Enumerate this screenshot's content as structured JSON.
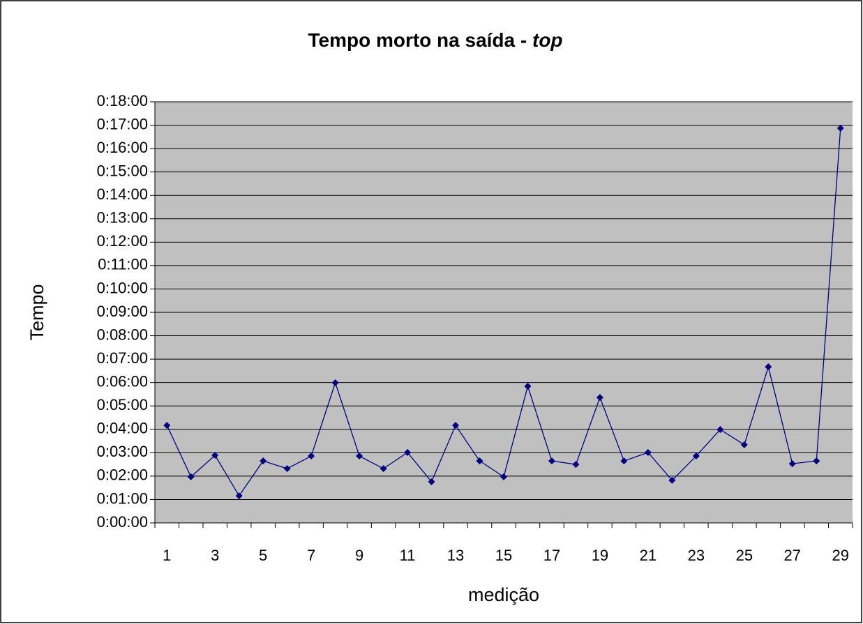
{
  "chart_data": {
    "type": "line",
    "title": "Tempo morto na saída - ",
    "title_italic": "top",
    "x_label": "medição",
    "y_label": "Tempo",
    "categories": [
      1,
      null,
      3,
      null,
      5,
      null,
      7,
      null,
      9,
      null,
      11,
      null,
      13,
      null,
      15,
      null,
      17,
      null,
      19,
      null,
      21,
      null,
      23,
      null,
      25,
      null,
      27,
      null,
      29
    ],
    "series": [
      {
        "color": "#000080",
        "values": [
          4.17,
          1.97,
          2.89,
          1.16,
          2.65,
          2.32,
          2.86,
          5.99,
          2.86,
          2.32,
          3.01,
          1.76,
          4.17,
          2.65,
          1.97,
          5.84,
          2.65,
          2.5,
          5.36,
          2.65,
          3.01,
          1.82,
          2.86,
          3.99,
          3.34,
          6.67,
          2.53,
          2.65,
          16.87
        ]
      }
    ],
    "ylim": [
      0,
      18
    ],
    "yticks": [
      {
        "value": 0,
        "label": "0:00:00"
      },
      {
        "value": 1,
        "label": "0:01:00"
      },
      {
        "value": 2,
        "label": "0:02:00"
      },
      {
        "value": 3,
        "label": "0:03:00"
      },
      {
        "value": 4,
        "label": "0:04:00"
      },
      {
        "value": 5,
        "label": "0:05:00"
      },
      {
        "value": 6,
        "label": "0:06:00"
      },
      {
        "value": 7,
        "label": "0:07:00"
      },
      {
        "value": 8,
        "label": "0:08:00"
      },
      {
        "value": 9,
        "label": "0:09:00"
      },
      {
        "value": 10,
        "label": "0:10:00"
      },
      {
        "value": 11,
        "label": "0:11:00"
      },
      {
        "value": 12,
        "label": "0:12:00"
      },
      {
        "value": 13,
        "label": "0:13:00"
      },
      {
        "value": 14,
        "label": "0:14:00"
      },
      {
        "value": 15,
        "label": "0:15:00"
      },
      {
        "value": 16,
        "label": "0:16:00"
      },
      {
        "value": 17,
        "label": "0:17:00"
      },
      {
        "value": 18,
        "label": "0:18:00"
      }
    ],
    "grid": true
  }
}
